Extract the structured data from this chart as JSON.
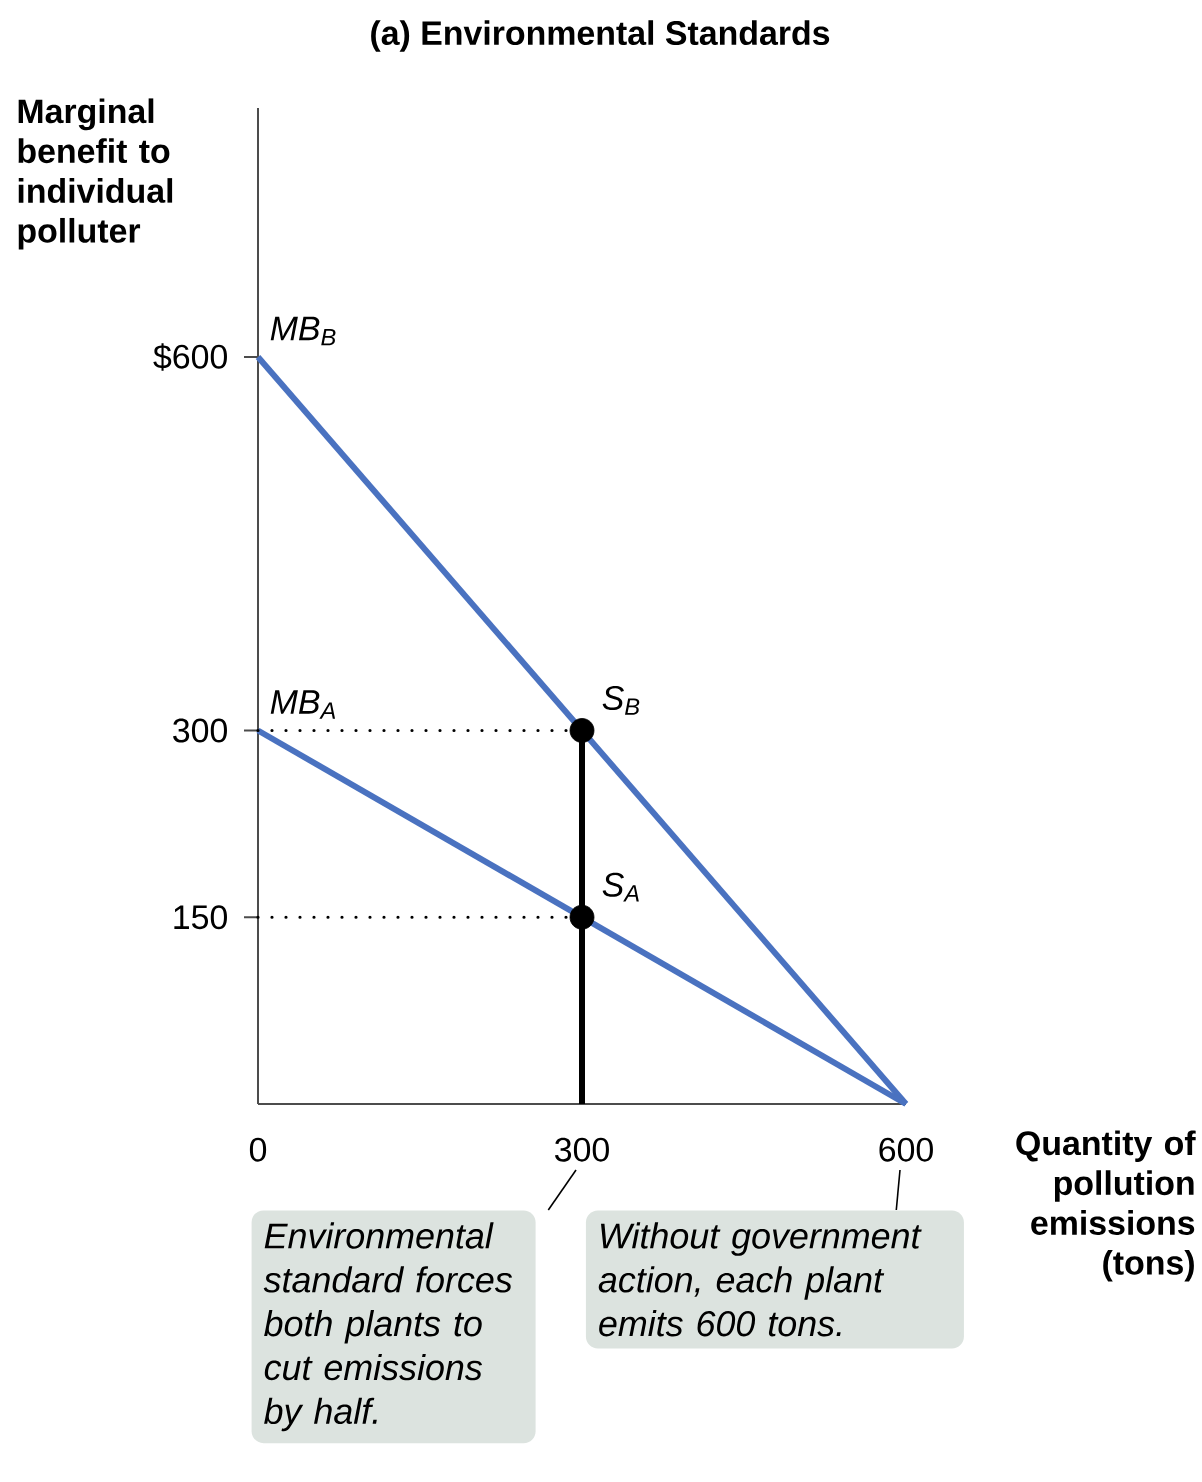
{
  "chart_data": {
    "type": "line",
    "title": "(a) Environmental Standards",
    "ylabel": "Marginal benefit to individual polluter",
    "xlabel": "Quantity of pollution emissions (tons)",
    "xlim": [
      0,
      600
    ],
    "ylim": [
      0,
      800
    ],
    "xticks": [
      0,
      300,
      600
    ],
    "yticks": [
      150,
      300,
      {
        "value": 600,
        "label": "$600"
      }
    ],
    "series": [
      {
        "name": "MB$_{B}$",
        "color": "#4a72c0",
        "x": [
          0,
          600
        ],
        "values": [
          600,
          0
        ],
        "line_style": "solid",
        "marker": "none"
      },
      {
        "name": "MB$_{A}$",
        "color": "#4a72c0",
        "x": [
          0,
          600
        ],
        "values": [
          300,
          0
        ],
        "line_style": "solid",
        "marker": "none"
      },
      {
        "color": "#000000",
        "x": [
          0,
          300
        ],
        "values": [
          300,
          300
        ],
        "line_style": "dotted",
        "marker": "none"
      },
      {
        "color": "#000000",
        "x": [
          0,
          300
        ],
        "values": [
          150,
          150
        ],
        "line_style": "dotted",
        "marker": "none"
      },
      {
        "color": "#000000",
        "x": [
          300,
          300
        ],
        "values": [
          0,
          300
        ],
        "line_style": "solid",
        "marker": "none"
      },
      {
        "name": "S$_{B}$",
        "type": "scatter",
        "color": "#000000",
        "x": [
          300
        ],
        "values": [
          300
        ],
        "marker": "circle"
      },
      {
        "name": "S$_{A}$",
        "type": "scatter",
        "color": "#000000",
        "x": [
          300
        ],
        "values": [
          150
        ],
        "marker": "circle"
      }
    ],
    "annotations": [
      "Environmental standard forces both plants to cut emissions by half.",
      "Without government action, each plant emits 600 tons."
    ]
  }
}
